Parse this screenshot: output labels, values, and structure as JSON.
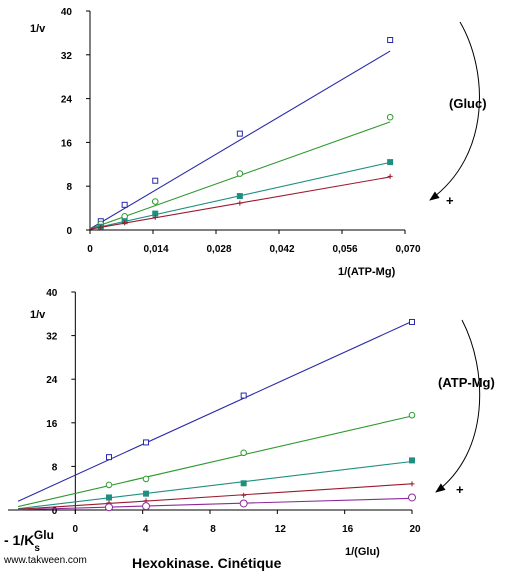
{
  "chart_data": [
    {
      "type": "line",
      "ylabel": "1/v",
      "xlabel": "1/(ATP-Mg)",
      "xlim": [
        0,
        0.07
      ],
      "ylim": [
        0,
        40
      ],
      "x_ticks": [
        "0",
        "0,014",
        "0,028",
        "0,042",
        "0,056",
        "0,070"
      ],
      "x_tick_values": [
        0,
        0.014,
        0.028,
        0.042,
        0.056,
        0.07
      ],
      "y_ticks": [
        "0",
        "8",
        "16",
        "24",
        "32",
        "40"
      ],
      "y_tick_values": [
        0,
        8,
        16,
        24,
        32,
        40
      ],
      "grid": false,
      "annotation_label": "(Gluc)",
      "annotation_sign": "+",
      "series": [
        {
          "color": "#2a2aa8",
          "marker": "square-open",
          "intercept": 0.2,
          "slope": 487,
          "x": [
            0.0024,
            0.0077,
            0.0145,
            0.0333,
            0.0667
          ],
          "y": [
            1.6,
            4.6,
            9.0,
            17.6,
            34.7
          ]
        },
        {
          "color": "#2e9a2e",
          "marker": "circle-open",
          "intercept": 0.2,
          "slope": 293,
          "x": [
            0.0024,
            0.0077,
            0.0145,
            0.0333,
            0.0667
          ],
          "y": [
            1.1,
            2.5,
            5.2,
            10.3,
            20.6
          ]
        },
        {
          "color": "#1f8f80",
          "marker": "square-filled",
          "intercept": 0.15,
          "slope": 183,
          "x": [
            0.0024,
            0.0077,
            0.0145,
            0.0333,
            0.0667
          ],
          "y": [
            0.6,
            1.6,
            3.0,
            6.2,
            12.4
          ]
        },
        {
          "color": "#9c1a2e",
          "marker": "plus",
          "intercept": 0.15,
          "slope": 143,
          "x": [
            0.0024,
            0.0077,
            0.0145,
            0.0333,
            0.0667
          ],
          "y": [
            0.5,
            1.3,
            2.3,
            4.9,
            9.8
          ]
        }
      ]
    },
    {
      "type": "line",
      "ylabel": "1/v",
      "xlabel": "1/(Glu)",
      "xlim": [
        -4,
        20
      ],
      "ylim": [
        0,
        40
      ],
      "x_ticks": [
        "0",
        "4",
        "8",
        "12",
        "16",
        "20"
      ],
      "x_tick_values": [
        0,
        4,
        8,
        12,
        16,
        20
      ],
      "y_ticks": [
        "0",
        "8",
        "16",
        "24",
        "32",
        "40"
      ],
      "y_tick_values": [
        0,
        8,
        16,
        24,
        32,
        40
      ],
      "grid": false,
      "annotation_label": "(ATP-Mg)",
      "annotation_sign": "+",
      "intercept_label": "- 1/K",
      "intercept_sub": "s",
      "intercept_sup": "Glu",
      "series": [
        {
          "color": "#2a2aa8",
          "marker": "square-open",
          "intercept": 6.4,
          "slope": 1.41,
          "x": [
            2,
            4.2,
            10,
            20
          ],
          "y": [
            9.7,
            12.4,
            21.0,
            34.5
          ]
        },
        {
          "color": "#2e9a2e",
          "marker": "circle-open",
          "intercept": 3.05,
          "slope": 0.71,
          "x": [
            2,
            4.2,
            10,
            20
          ],
          "y": [
            4.6,
            5.7,
            10.5,
            17.4
          ]
        },
        {
          "color": "#1f8f80",
          "marker": "square-filled",
          "intercept": 1.5,
          "slope": 0.37,
          "x": [
            2,
            4.2,
            10,
            20
          ],
          "y": [
            2.3,
            3.0,
            4.9,
            9.1
          ]
        },
        {
          "color": "#9c1a2e",
          "marker": "plus",
          "intercept": 0.8,
          "slope": 0.2,
          "x": [
            2,
            4.2,
            10,
            20
          ],
          "y": [
            1.3,
            1.7,
            2.7,
            4.8
          ]
        },
        {
          "color": "#8a2a9a",
          "marker": "circle-open",
          "intercept": 0.35,
          "slope": 0.09,
          "x": [
            2,
            4.2,
            10,
            20
          ],
          "y": [
            0.5,
            0.7,
            1.2,
            2.3
          ]
        }
      ]
    }
  ],
  "footer": {
    "site": "www.takween.com",
    "caption": "Hexokinase. Cinétique"
  }
}
